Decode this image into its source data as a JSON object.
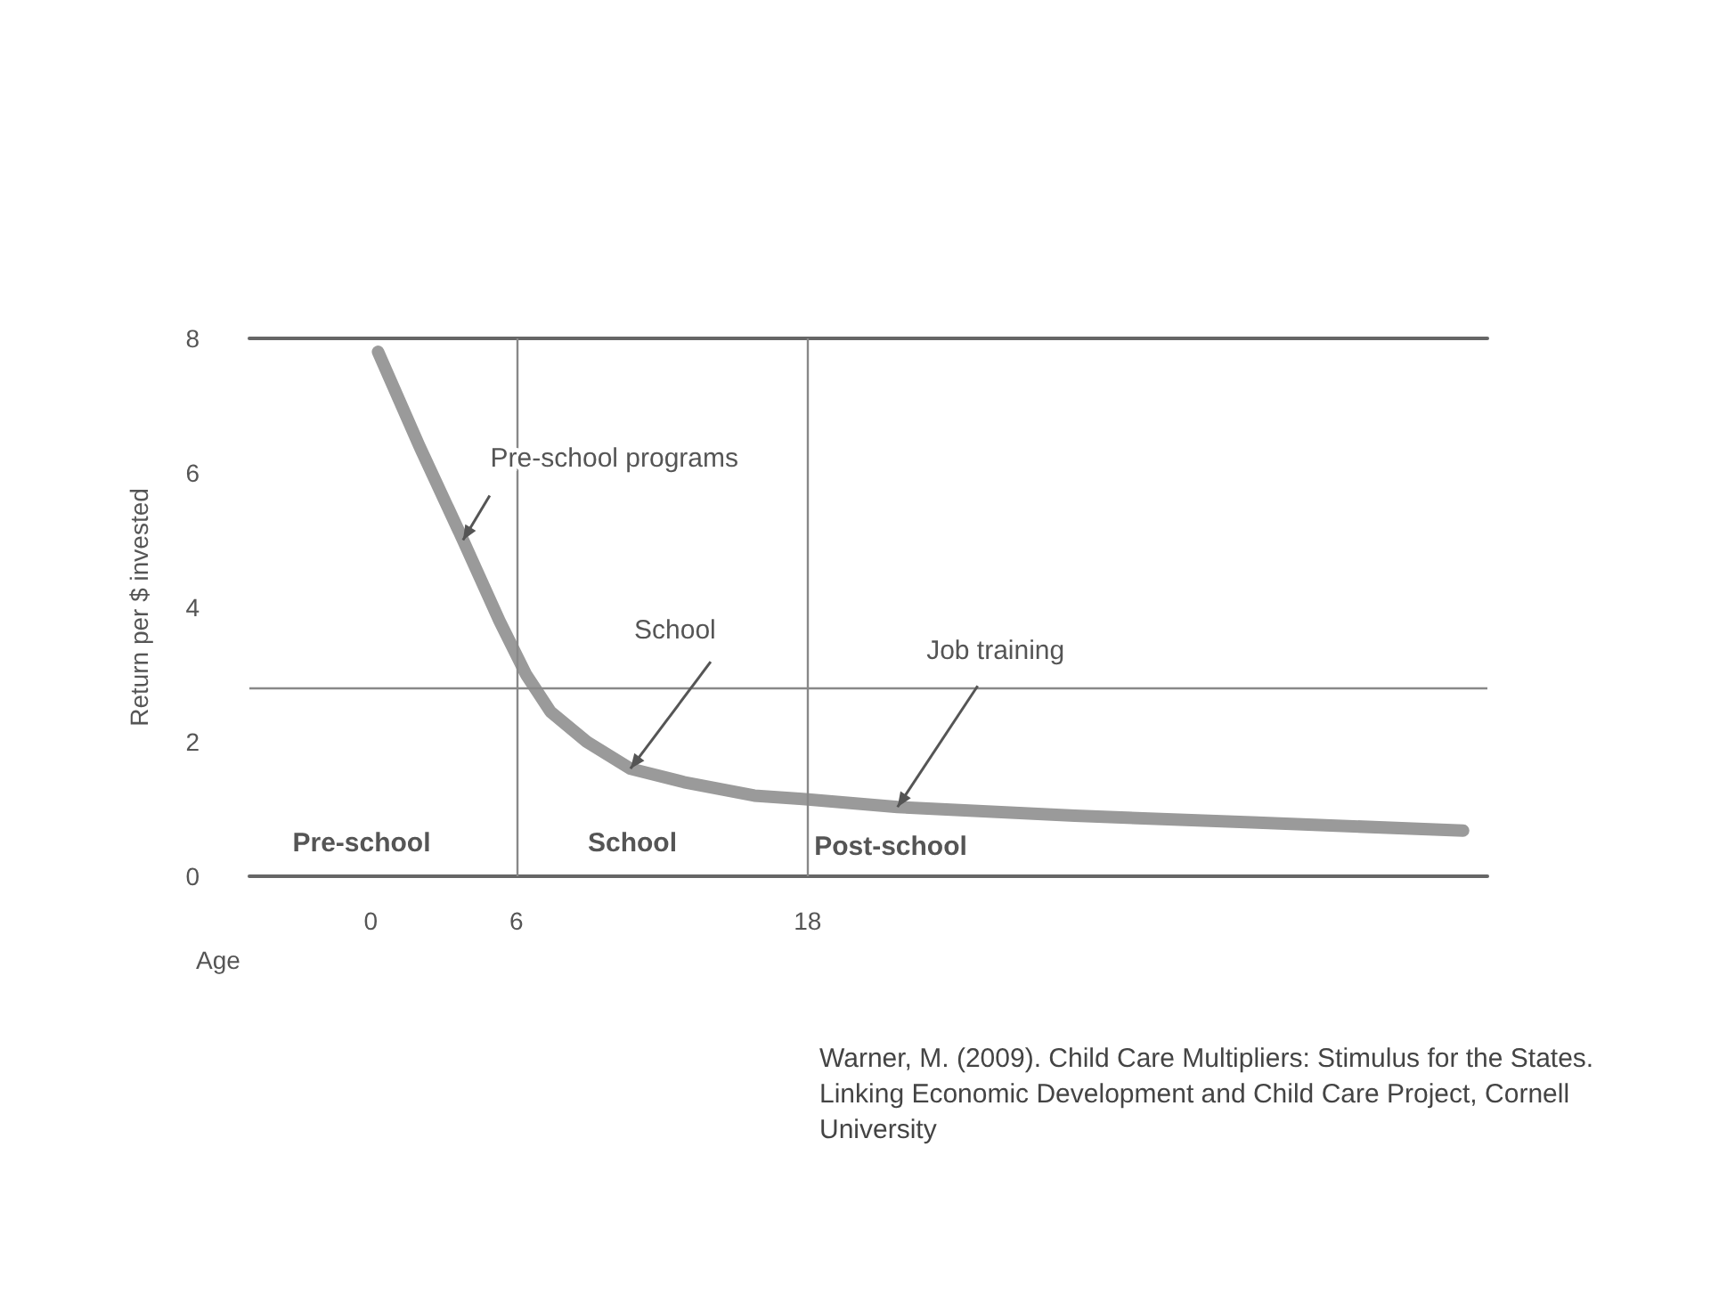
{
  "chart_data": {
    "type": "line",
    "xlabel": "Age",
    "ylabel": "Return per $ invested",
    "x": [
      0.3,
      2,
      3.8,
      5.3,
      6.4,
      7.4,
      8.9,
      10.7,
      12.9,
      15.8,
      17.8,
      21.7,
      29,
      36.3,
      45
    ],
    "series": [
      {
        "color": "#9a9a9a",
        "values": [
          7.8,
          6.4,
          5.0,
          3.8,
          3.0,
          2.45,
          2.0,
          1.6,
          1.4,
          1.2,
          1.15,
          1.03,
          0.9,
          0.8,
          0.68
        ]
      }
    ],
    "xlim": [
      -5,
      46
    ],
    "xticks": [
      0,
      6,
      18
    ],
    "ylim": [
      0,
      8
    ],
    "yticks": [
      0,
      2,
      4,
      6,
      8
    ],
    "grid": false,
    "line_style": "solid",
    "ref_lines": [
      {
        "axis": "y",
        "value": 2.8,
        "color": "#888888"
      },
      {
        "axis": "x",
        "value": 6,
        "color": "#888888"
      },
      {
        "axis": "x",
        "value": 18,
        "color": "#888888"
      }
    ],
    "annotations": [
      {
        "text": "Pre-school programs",
        "x": 3.8,
        "y": 5.0
      },
      {
        "text": "School",
        "x": 10.7,
        "y": 1.6
      },
      {
        "text": "Job training",
        "x": 21.7,
        "y": 1.03
      },
      "Pre-school",
      "School",
      "Post-school",
      "Warner, M. (2009). Child Care Multipliers: Stimulus for the States. Linking Economic Development and Child Care Project, Cornell University"
    ]
  }
}
